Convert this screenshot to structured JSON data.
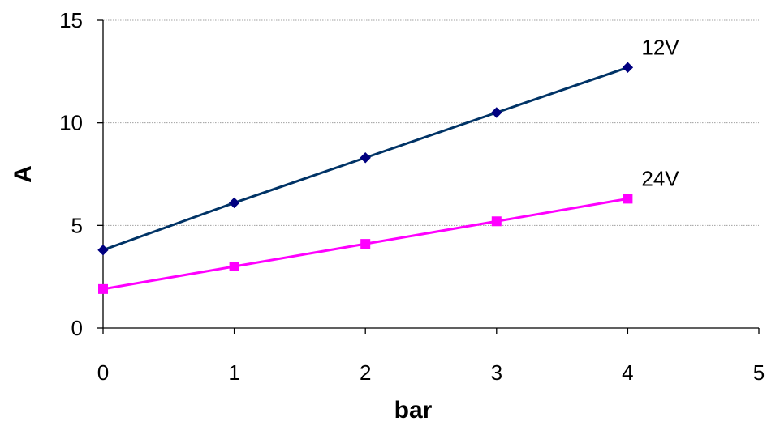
{
  "chart_data": {
    "type": "line",
    "title": "",
    "xlabel": "bar",
    "ylabel": "A",
    "xlim": [
      0,
      5
    ],
    "ylim": [
      0,
      15
    ],
    "x_ticks": [
      0,
      1,
      2,
      3,
      4,
      5
    ],
    "y_ticks": [
      0,
      5,
      10,
      15
    ],
    "grid": {
      "horizontal": true,
      "vertical": false
    },
    "series": [
      {
        "name": "12V",
        "x": [
          0,
          1,
          2,
          3,
          4
        ],
        "values": [
          3.8,
          6.1,
          8.3,
          10.5,
          12.7
        ],
        "color": "#003366",
        "marker": "diamond",
        "marker_color": "#000080"
      },
      {
        "name": "24V",
        "x": [
          0,
          1,
          2,
          3,
          4
        ],
        "values": [
          1.9,
          3.0,
          4.1,
          5.2,
          6.3
        ],
        "color": "#FF00FF",
        "marker": "square",
        "marker_color": "#FF00FF"
      }
    ]
  }
}
